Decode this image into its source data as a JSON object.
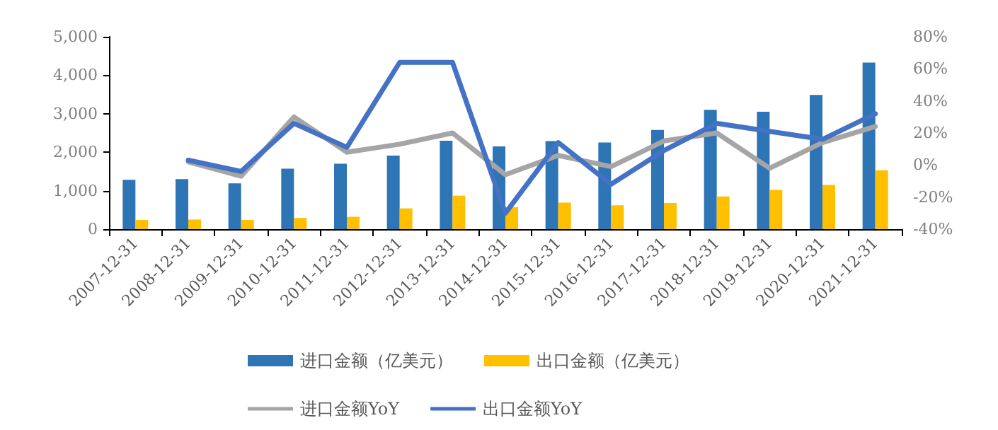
{
  "chart_data": {
    "type": "bar",
    "categories": [
      "2007-12-31",
      "2008-12-31",
      "2009-12-31",
      "2010-12-31",
      "2011-12-31",
      "2012-12-31",
      "2013-12-31",
      "2014-12-31",
      "2015-12-31",
      "2016-12-31",
      "2017-12-31",
      "2018-12-31",
      "2019-12-31",
      "2020-12-31",
      "2021-12-31"
    ],
    "series": [
      {
        "name": "进口金额（亿美元）",
        "color": "#2e75b6",
        "values": [
          1280,
          1300,
          1190,
          1570,
          1700,
          1910,
          2300,
          2150,
          2290,
          2250,
          2580,
          3100,
          3050,
          3490,
          4330
        ]
      },
      {
        "name": "出口金额（亿美元）",
        "color": "#ffc000",
        "values": [
          240,
          250,
          240,
          290,
          320,
          540,
          870,
          570,
          690,
          620,
          680,
          850,
          1020,
          1150,
          1530
        ]
      },
      {
        "name": "进口金额YoY",
        "type": "line",
        "axis": "y2",
        "color": "#a5a5a5",
        "values": [
          null,
          2,
          -7,
          30,
          8,
          13,
          20,
          -6,
          6,
          -1,
          15,
          20,
          -2,
          14,
          24
        ]
      },
      {
        "name": "出口金额YoY",
        "type": "line",
        "axis": "y2",
        "color": "#4472c4",
        "values": [
          null,
          3,
          -4,
          26,
          11,
          64,
          64,
          -30,
          14,
          -12,
          9,
          26,
          21,
          16,
          32
        ]
      }
    ],
    "ylim": [
      0,
      5000
    ],
    "yticks": [
      0,
      {
        "value": 1000,
        "label": "1,000"
      },
      {
        "value": 2000,
        "label": "2,000"
      },
      {
        "value": 3000,
        "label": "3,000"
      },
      {
        "value": 4000,
        "label": "4,000"
      },
      {
        "value": 5000,
        "label": "5,000"
      }
    ],
    "y2lim": [
      -40,
      80
    ],
    "y2ticks": [
      {
        "value": -40,
        "label": "-40%"
      },
      {
        "value": -20,
        "label": "-20%"
      },
      {
        "value": 0,
        "label": "0%"
      },
      {
        "value": 20,
        "label": "20%"
      },
      {
        "value": 40,
        "label": "40%"
      },
      {
        "value": 60,
        "label": "60%"
      },
      {
        "value": 80,
        "label": "80%"
      }
    ],
    "grid": false,
    "legend": "bottom",
    "marker": "none",
    "line_style": "solid"
  }
}
